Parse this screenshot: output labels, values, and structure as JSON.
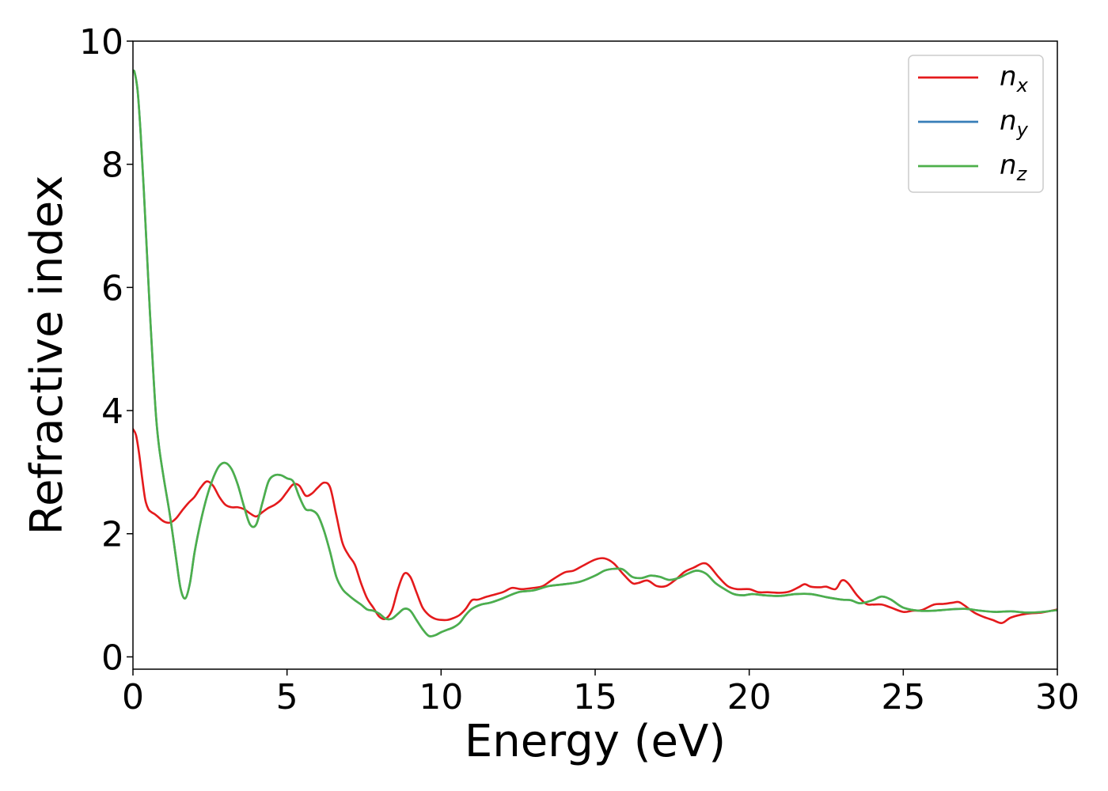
{
  "chart_data": {
    "type": "line",
    "title": "",
    "xlabel": "Energy (eV)",
    "ylabel": "Refractive index",
    "xlim": [
      0,
      30
    ],
    "ylim": [
      -0.2,
      10
    ],
    "xticks": [
      0,
      5,
      10,
      15,
      20,
      25,
      30
    ],
    "yticks": [
      0,
      2,
      4,
      6,
      8,
      10
    ],
    "grid": false,
    "legend_position": "top-right",
    "legend": [
      {
        "base": "n",
        "sub": "x"
      },
      {
        "base": "n",
        "sub": "y"
      },
      {
        "base": "n",
        "sub": "z"
      }
    ],
    "series": [
      {
        "name": "n_x",
        "color": "#e41a1c",
        "x": [
          0,
          0.1,
          0.2,
          0.3,
          0.4,
          0.5,
          0.6,
          0.7,
          0.8,
          1.0,
          1.2,
          1.4,
          1.6,
          1.8,
          2.0,
          2.2,
          2.4,
          2.6,
          2.8,
          3.0,
          3.2,
          3.4,
          3.6,
          3.8,
          4.0,
          4.2,
          4.4,
          4.6,
          4.8,
          5.0,
          5.2,
          5.4,
          5.6,
          5.8,
          6.0,
          6.2,
          6.4,
          6.6,
          6.8,
          7.0,
          7.2,
          7.4,
          7.6,
          7.8,
          8.0,
          8.2,
          8.4,
          8.6,
          8.8,
          9.0,
          9.2,
          9.4,
          9.6,
          9.8,
          10.0,
          10.2,
          10.4,
          10.6,
          10.8,
          11.0,
          11.2,
          11.5,
          12.0,
          12.3,
          12.6,
          13.0,
          13.3,
          13.6,
          14.0,
          14.3,
          14.6,
          15.0,
          15.3,
          15.6,
          15.9,
          16.2,
          16.4,
          16.7,
          17.0,
          17.3,
          17.6,
          17.9,
          18.2,
          18.5,
          18.7,
          19.0,
          19.3,
          19.6,
          20.0,
          20.3,
          20.6,
          21.0,
          21.3,
          21.6,
          21.8,
          22.0,
          22.3,
          22.5,
          22.8,
          23.0,
          23.2,
          23.5,
          23.8,
          24.0,
          24.3,
          24.6,
          25.0,
          25.3,
          25.6,
          26.0,
          26.3,
          26.6,
          26.8,
          27.0,
          27.3,
          27.6,
          27.9,
          28.2,
          28.5,
          29.0,
          29.5,
          30.0
        ],
        "y": [
          3.7,
          3.6,
          3.3,
          2.9,
          2.55,
          2.4,
          2.35,
          2.32,
          2.28,
          2.2,
          2.18,
          2.25,
          2.38,
          2.5,
          2.6,
          2.75,
          2.85,
          2.78,
          2.6,
          2.47,
          2.43,
          2.43,
          2.4,
          2.33,
          2.28,
          2.35,
          2.42,
          2.47,
          2.55,
          2.68,
          2.8,
          2.78,
          2.62,
          2.65,
          2.75,
          2.83,
          2.75,
          2.3,
          1.85,
          1.65,
          1.5,
          1.2,
          0.95,
          0.8,
          0.65,
          0.62,
          0.75,
          1.1,
          1.35,
          1.3,
          1.05,
          0.8,
          0.68,
          0.62,
          0.6,
          0.6,
          0.63,
          0.68,
          0.78,
          0.92,
          0.93,
          0.98,
          1.05,
          1.12,
          1.1,
          1.12,
          1.15,
          1.25,
          1.37,
          1.4,
          1.48,
          1.58,
          1.6,
          1.52,
          1.35,
          1.2,
          1.2,
          1.24,
          1.15,
          1.15,
          1.25,
          1.38,
          1.45,
          1.52,
          1.48,
          1.3,
          1.15,
          1.1,
          1.1,
          1.05,
          1.05,
          1.04,
          1.06,
          1.13,
          1.18,
          1.14,
          1.13,
          1.14,
          1.1,
          1.24,
          1.2,
          1.0,
          0.86,
          0.85,
          0.85,
          0.8,
          0.73,
          0.75,
          0.76,
          0.85,
          0.86,
          0.88,
          0.89,
          0.83,
          0.72,
          0.65,
          0.6,
          0.55,
          0.64,
          0.7,
          0.72,
          0.77
        ]
      },
      {
        "name": "n_y",
        "color": "#377eb8",
        "x": [
          0,
          0.05,
          0.15,
          0.25,
          0.35,
          0.45,
          0.55,
          0.65,
          0.75,
          0.85,
          1.0,
          1.2,
          1.4,
          1.55,
          1.7,
          1.85,
          2.0,
          2.2,
          2.4,
          2.6,
          2.8,
          3.0,
          3.2,
          3.4,
          3.6,
          3.8,
          4.0,
          4.2,
          4.4,
          4.6,
          4.8,
          5.0,
          5.2,
          5.4,
          5.6,
          5.8,
          6.0,
          6.2,
          6.4,
          6.6,
          6.8,
          7.0,
          7.2,
          7.4,
          7.6,
          7.8,
          8.0,
          8.2,
          8.4,
          8.6,
          8.8,
          9.0,
          9.2,
          9.4,
          9.6,
          9.8,
          10.0,
          10.2,
          10.4,
          10.6,
          10.8,
          11.0,
          11.3,
          11.6,
          12.0,
          12.5,
          13.0,
          13.5,
          14.0,
          14.5,
          15.0,
          15.3,
          15.6,
          15.9,
          16.2,
          16.5,
          16.8,
          17.1,
          17.4,
          17.7,
          18.0,
          18.3,
          18.6,
          18.9,
          19.2,
          19.5,
          19.8,
          20.1,
          20.5,
          21.0,
          21.5,
          22.0,
          22.5,
          23.0,
          23.3,
          23.6,
          24.0,
          24.3,
          24.6,
          25.0,
          25.5,
          26.0,
          26.5,
          27.0,
          27.5,
          28.0,
          28.5,
          29.0,
          29.5,
          30.0
        ],
        "y": [
          9.5,
          9.5,
          9.2,
          8.5,
          7.6,
          6.6,
          5.6,
          4.7,
          3.9,
          3.4,
          2.9,
          2.3,
          1.6,
          1.1,
          0.95,
          1.2,
          1.7,
          2.2,
          2.6,
          2.9,
          3.1,
          3.15,
          3.05,
          2.8,
          2.45,
          2.15,
          2.15,
          2.5,
          2.85,
          2.95,
          2.95,
          2.9,
          2.85,
          2.6,
          2.4,
          2.38,
          2.3,
          2.05,
          1.7,
          1.3,
          1.1,
          1.0,
          0.92,
          0.85,
          0.77,
          0.75,
          0.7,
          0.62,
          0.62,
          0.7,
          0.78,
          0.75,
          0.6,
          0.45,
          0.34,
          0.35,
          0.4,
          0.44,
          0.48,
          0.55,
          0.68,
          0.78,
          0.85,
          0.88,
          0.95,
          1.05,
          1.08,
          1.15,
          1.18,
          1.22,
          1.32,
          1.4,
          1.43,
          1.42,
          1.3,
          1.28,
          1.32,
          1.3,
          1.25,
          1.28,
          1.35,
          1.4,
          1.35,
          1.2,
          1.1,
          1.02,
          1.0,
          1.02,
          1.0,
          0.99,
          1.02,
          1.02,
          0.97,
          0.93,
          0.92,
          0.87,
          0.92,
          0.98,
          0.93,
          0.8,
          0.75,
          0.75,
          0.77,
          0.78,
          0.75,
          0.73,
          0.74,
          0.72,
          0.73,
          0.76
        ]
      },
      {
        "name": "n_z",
        "color": "#4daf4a",
        "x": [
          0,
          0.05,
          0.15,
          0.25,
          0.35,
          0.45,
          0.55,
          0.65,
          0.75,
          0.85,
          1.0,
          1.2,
          1.4,
          1.55,
          1.7,
          1.85,
          2.0,
          2.2,
          2.4,
          2.6,
          2.8,
          3.0,
          3.2,
          3.4,
          3.6,
          3.8,
          4.0,
          4.2,
          4.4,
          4.6,
          4.8,
          5.0,
          5.2,
          5.4,
          5.6,
          5.8,
          6.0,
          6.2,
          6.4,
          6.6,
          6.8,
          7.0,
          7.2,
          7.4,
          7.6,
          7.8,
          8.0,
          8.2,
          8.4,
          8.6,
          8.8,
          9.0,
          9.2,
          9.4,
          9.6,
          9.8,
          10.0,
          10.2,
          10.4,
          10.6,
          10.8,
          11.0,
          11.3,
          11.6,
          12.0,
          12.5,
          13.0,
          13.5,
          14.0,
          14.5,
          15.0,
          15.3,
          15.6,
          15.9,
          16.2,
          16.5,
          16.8,
          17.1,
          17.4,
          17.7,
          18.0,
          18.3,
          18.6,
          18.9,
          19.2,
          19.5,
          19.8,
          20.1,
          20.5,
          21.0,
          21.5,
          22.0,
          22.5,
          23.0,
          23.3,
          23.6,
          24.0,
          24.3,
          24.6,
          25.0,
          25.5,
          26.0,
          26.5,
          27.0,
          27.5,
          28.0,
          28.5,
          29.0,
          29.5,
          30.0
        ],
        "y": [
          9.5,
          9.5,
          9.2,
          8.5,
          7.6,
          6.6,
          5.6,
          4.7,
          3.9,
          3.4,
          2.9,
          2.3,
          1.6,
          1.1,
          0.95,
          1.2,
          1.7,
          2.2,
          2.6,
          2.9,
          3.1,
          3.15,
          3.05,
          2.8,
          2.45,
          2.15,
          2.15,
          2.5,
          2.85,
          2.95,
          2.95,
          2.9,
          2.85,
          2.6,
          2.4,
          2.38,
          2.3,
          2.05,
          1.7,
          1.3,
          1.1,
          1.0,
          0.92,
          0.85,
          0.77,
          0.75,
          0.7,
          0.62,
          0.62,
          0.7,
          0.78,
          0.75,
          0.6,
          0.45,
          0.34,
          0.35,
          0.4,
          0.44,
          0.48,
          0.55,
          0.68,
          0.78,
          0.85,
          0.88,
          0.95,
          1.05,
          1.08,
          1.15,
          1.18,
          1.22,
          1.32,
          1.4,
          1.43,
          1.42,
          1.3,
          1.28,
          1.32,
          1.3,
          1.25,
          1.28,
          1.35,
          1.4,
          1.35,
          1.2,
          1.1,
          1.02,
          1.0,
          1.02,
          1.0,
          0.99,
          1.02,
          1.02,
          0.97,
          0.93,
          0.92,
          0.87,
          0.92,
          0.98,
          0.93,
          0.8,
          0.75,
          0.75,
          0.77,
          0.78,
          0.75,
          0.73,
          0.74,
          0.72,
          0.73,
          0.76
        ]
      }
    ]
  }
}
